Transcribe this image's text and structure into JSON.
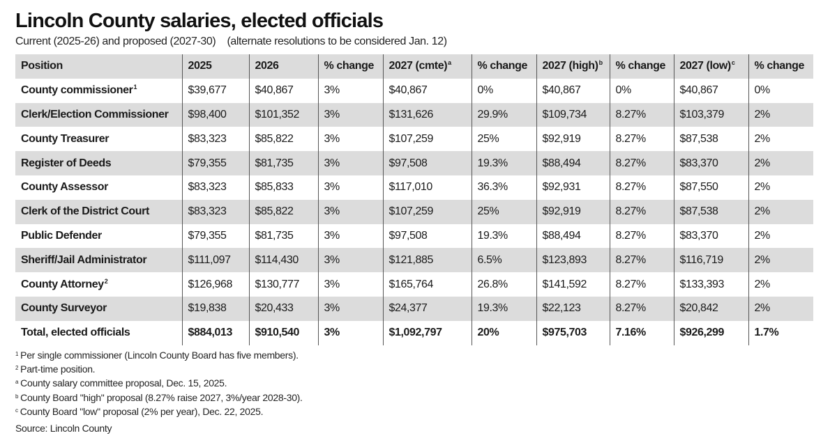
{
  "title": "Lincoln County salaries, elected officials",
  "subtitle": "Current (2025-26) and proposed (2027-30)    (alternate resolutions to be considered Jan. 12)",
  "table": {
    "headers": [
      {
        "label": "Position",
        "sup": ""
      },
      {
        "label": "2025",
        "sup": ""
      },
      {
        "label": "2026",
        "sup": ""
      },
      {
        "label": "% change",
        "sup": ""
      },
      {
        "label": "2027 (cmte)",
        "sup": "a"
      },
      {
        "label": "% change",
        "sup": ""
      },
      {
        "label": "2027 (high)",
        "sup": "b"
      },
      {
        "label": "% change",
        "sup": ""
      },
      {
        "label": "2027 (low)",
        "sup": "c"
      },
      {
        "label": "% change",
        "sup": ""
      }
    ],
    "rows": [
      {
        "position": "County commissioner",
        "sup": "1",
        "values": [
          "$39,677",
          "$40,867",
          "3%",
          "$40,867",
          "0%",
          "$40,867",
          "0%",
          "$40,867",
          "0%"
        ]
      },
      {
        "position": "Clerk/Election Commissioner",
        "sup": "",
        "values": [
          "$98,400",
          "$101,352",
          "3%",
          "$131,626",
          "29.9%",
          "$109,734",
          "8.27%",
          "$103,379",
          "2%"
        ]
      },
      {
        "position": "County Treasurer",
        "sup": "",
        "values": [
          "$83,323",
          "$85,822",
          "3%",
          "$107,259",
          "25%",
          "$92,919",
          "8.27%",
          "$87,538",
          "2%"
        ]
      },
      {
        "position": "Register of Deeds",
        "sup": "",
        "values": [
          "$79,355",
          "$81,735",
          "3%",
          "$97,508",
          "19.3%",
          "$88,494",
          "8.27%",
          "$83,370",
          "2%"
        ]
      },
      {
        "position": "County Assessor",
        "sup": "",
        "values": [
          "$83,323",
          "$85,833",
          "3%",
          "$117,010",
          "36.3%",
          "$92,931",
          "8.27%",
          "$87,550",
          "2%"
        ]
      },
      {
        "position": "Clerk of the District Court",
        "sup": "",
        "values": [
          "$83,323",
          "$85,822",
          "3%",
          "$107,259",
          "25%",
          "$92,919",
          "8.27%",
          "$87,538",
          "2%"
        ]
      },
      {
        "position": "Public Defender",
        "sup": "",
        "values": [
          "$79,355",
          "$81,735",
          "3%",
          "$97,508",
          "19.3%",
          "$88,494",
          "8.27%",
          "$83,370",
          "2%"
        ]
      },
      {
        "position": "Sheriff/Jail Administrator",
        "sup": "",
        "values": [
          "$111,097",
          "$114,430",
          "3%",
          "$121,885",
          "6.5%",
          "$123,893",
          "8.27%",
          "$116,719",
          "2%"
        ]
      },
      {
        "position": "County Attorney",
        "sup": "2",
        "values": [
          "$126,968",
          "$130,777",
          "3%",
          "$165,764",
          "26.8%",
          "$141,592",
          "8.27%",
          "$133,393",
          "2%"
        ]
      },
      {
        "position": "County Surveyor",
        "sup": "",
        "values": [
          "$19,838",
          "$20,433",
          "3%",
          "$24,377",
          "19.3%",
          "$22,123",
          "8.27%",
          "$20,842",
          "2%"
        ]
      }
    ],
    "total": {
      "position": "Total, elected officials",
      "values": [
        "$884,013",
        "$910,540",
        "3%",
        "$1,092,797",
        "20%",
        "$975,703",
        "7.16%",
        "$926,299",
        "1.7%"
      ]
    }
  },
  "footnotes": [
    {
      "mark": "1",
      "text": "Per single commissioner (Lincoln County Board has five members)."
    },
    {
      "mark": "2",
      "text": "Part-time position."
    },
    {
      "mark": "a",
      "text": "County salary committee proposal, Dec. 15, 2025."
    },
    {
      "mark": "b",
      "text": "County Board \"high\" proposal (8.27% raise 2027, 3%/year 2028-30)."
    },
    {
      "mark": "c",
      "text": "County Board \"low\" proposal (2% per year), Dec. 22, 2025."
    }
  ],
  "source": "Source: Lincoln County",
  "colors": {
    "row_shade": "#dcdcdc",
    "divider": "#555555",
    "text": "#1a1a1a"
  }
}
